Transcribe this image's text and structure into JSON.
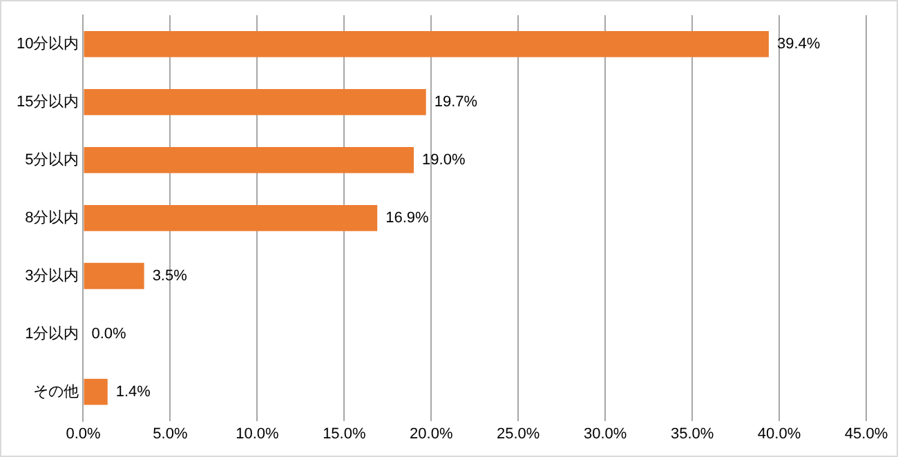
{
  "chart_data": {
    "type": "bar",
    "orientation": "horizontal",
    "categories": [
      "10分以内",
      "15分以内",
      "5分以内",
      "8分以内",
      "3分以内",
      "1分以内",
      "その他"
    ],
    "values": [
      39.4,
      19.7,
      19.0,
      16.9,
      3.5,
      0.0,
      1.4
    ],
    "value_labels": [
      "39.4%",
      "19.7%",
      "19.0%",
      "16.9%",
      "3.5%",
      "0.0%",
      "1.4%"
    ],
    "color": "#ed7d31",
    "xlim": [
      0,
      45
    ],
    "xticks": [
      {
        "value": 0,
        "label": "0.0%"
      },
      {
        "value": 5,
        "label": "5.0%"
      },
      {
        "value": 10,
        "label": "10.0%"
      },
      {
        "value": 15,
        "label": "15.0%"
      },
      {
        "value": 20,
        "label": "20.0%"
      },
      {
        "value": 25,
        "label": "25.0%"
      },
      {
        "value": 30,
        "label": "30.0%"
      },
      {
        "value": 35,
        "label": "35.0%"
      },
      {
        "value": 40,
        "label": "40.0%"
      },
      {
        "value": 45,
        "label": "45.0%"
      }
    ],
    "grid": "x",
    "legend": false
  }
}
